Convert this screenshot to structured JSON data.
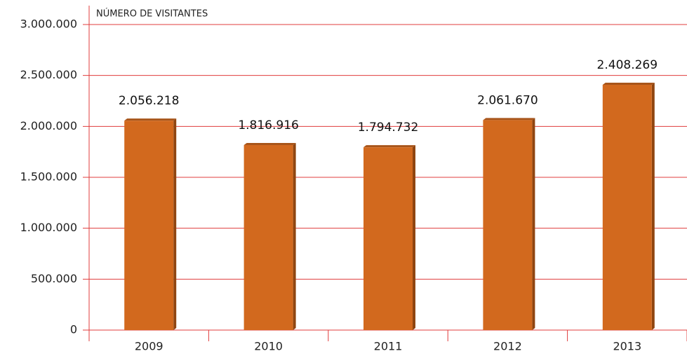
{
  "chart_data": {
    "type": "bar",
    "ylabel": "NÚMERO DE VISITANTES",
    "categories": [
      "2009",
      "2010",
      "2011",
      "2012",
      "2013"
    ],
    "values": [
      2056218,
      1816916,
      1794732,
      2061670,
      2408269
    ],
    "value_labels": [
      "2.056.218",
      "1.816.916",
      "1.794.732",
      "2.061.670",
      "2.408.269"
    ],
    "color": "#d2691e",
    "grid_color": "#e03c3c",
    "grid": true,
    "ylim": [
      0,
      3000000
    ],
    "yticks": [
      0,
      {
        "value": 500000,
        "label": "500.000"
      },
      {
        "value": 1000000,
        "label": "1.000.000"
      },
      {
        "value": 1500000,
        "label": "1.500.000"
      },
      {
        "value": 2000000,
        "label": "2.000.000"
      },
      {
        "value": 2500000,
        "label": "2.500.000"
      },
      {
        "value": 3000000,
        "label": "3.000.000"
      }
    ]
  }
}
